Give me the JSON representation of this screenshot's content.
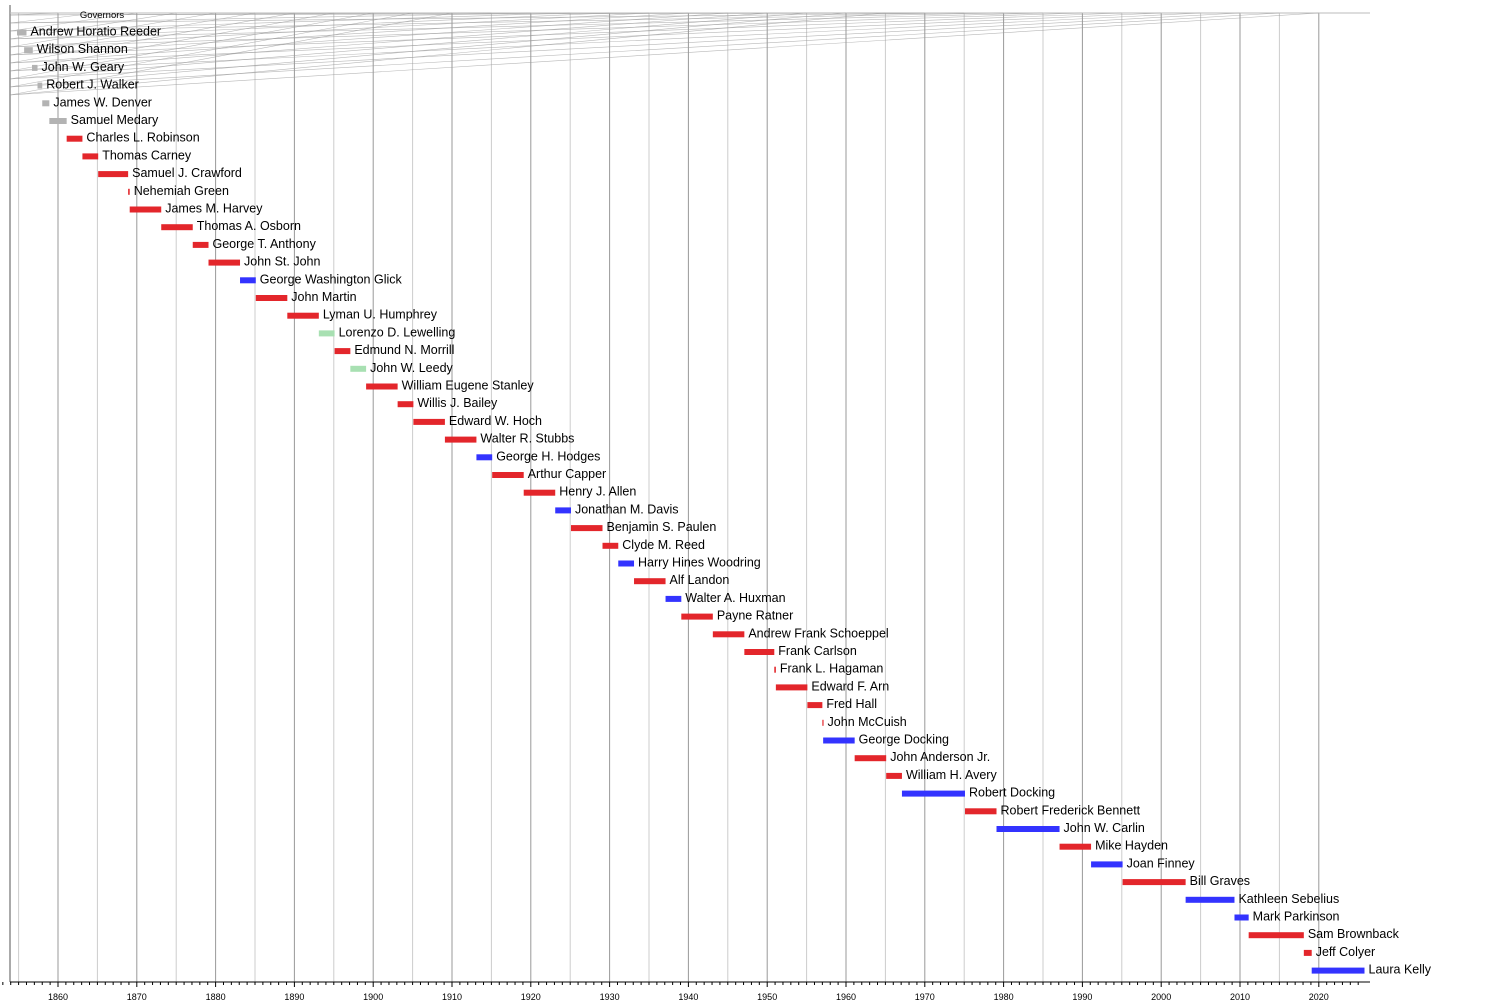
{
  "chart_data": {
    "type": "timeline",
    "title": "Governors",
    "x_range": [
      1853,
      2026
    ],
    "x_ticks": [
      "1860",
      "1870",
      "1880",
      "1890",
      "1900",
      "1910",
      "1920",
      "1930",
      "1940",
      "1950",
      "1960",
      "1970",
      "1980",
      "1990",
      "2000",
      "2010",
      "2020"
    ],
    "party_colors": {
      "Democratic": "#3333ff",
      "Republican": "#e3262b",
      "Populist": "#a8e0b2",
      "Territorial": "#b3b3b3"
    },
    "governors": [
      {
        "name": "Andrew Horatio Reeder",
        "start": 1854.8,
        "end": 1856.0,
        "party": "Territorial"
      },
      {
        "name": "Wilson Shannon",
        "start": 1855.7,
        "end": 1856.8,
        "party": "Territorial"
      },
      {
        "name": "John W. Geary",
        "start": 1856.7,
        "end": 1857.4,
        "party": "Territorial"
      },
      {
        "name": "Robert J. Walker",
        "start": 1857.4,
        "end": 1858.0,
        "party": "Territorial"
      },
      {
        "name": "James W. Denver",
        "start": 1858.0,
        "end": 1858.9,
        "party": "Territorial"
      },
      {
        "name": "Samuel Medary",
        "start": 1858.9,
        "end": 1861.1,
        "party": "Territorial"
      },
      {
        "name": "Charles L. Robinson",
        "start": 1861.1,
        "end": 1863.1,
        "party": "Republican"
      },
      {
        "name": "Thomas Carney",
        "start": 1863.1,
        "end": 1865.1,
        "party": "Republican"
      },
      {
        "name": "Samuel J. Crawford",
        "start": 1865.1,
        "end": 1868.9,
        "party": "Republican"
      },
      {
        "name": "Nehemiah Green",
        "start": 1868.9,
        "end": 1869.1,
        "party": "Republican"
      },
      {
        "name": "James M. Harvey",
        "start": 1869.1,
        "end": 1873.1,
        "party": "Republican"
      },
      {
        "name": "Thomas A. Osborn",
        "start": 1873.1,
        "end": 1877.1,
        "party": "Republican"
      },
      {
        "name": "George T. Anthony",
        "start": 1877.1,
        "end": 1879.1,
        "party": "Republican"
      },
      {
        "name": "John St. John",
        "start": 1879.1,
        "end": 1883.1,
        "party": "Republican"
      },
      {
        "name": "George Washington Glick",
        "start": 1883.1,
        "end": 1885.1,
        "party": "Democratic"
      },
      {
        "name": "John Martin",
        "start": 1885.1,
        "end": 1889.1,
        "party": "Republican"
      },
      {
        "name": "Lyman U. Humphrey",
        "start": 1889.1,
        "end": 1893.1,
        "party": "Republican"
      },
      {
        "name": "Lorenzo D. Lewelling",
        "start": 1893.1,
        "end": 1895.1,
        "party": "Populist"
      },
      {
        "name": "Edmund N. Morrill",
        "start": 1895.1,
        "end": 1897.1,
        "party": "Republican"
      },
      {
        "name": "John W. Leedy",
        "start": 1897.1,
        "end": 1899.1,
        "party": "Populist"
      },
      {
        "name": "William Eugene Stanley",
        "start": 1899.1,
        "end": 1903.1,
        "party": "Republican"
      },
      {
        "name": "Willis J. Bailey",
        "start": 1903.1,
        "end": 1905.1,
        "party": "Republican"
      },
      {
        "name": "Edward W. Hoch",
        "start": 1905.1,
        "end": 1909.1,
        "party": "Republican"
      },
      {
        "name": "Walter R. Stubbs",
        "start": 1909.1,
        "end": 1913.1,
        "party": "Republican"
      },
      {
        "name": "George H. Hodges",
        "start": 1913.1,
        "end": 1915.1,
        "party": "Democratic"
      },
      {
        "name": "Arthur Capper",
        "start": 1915.1,
        "end": 1919.1,
        "party": "Republican"
      },
      {
        "name": "Henry J. Allen",
        "start": 1919.1,
        "end": 1923.1,
        "party": "Republican"
      },
      {
        "name": "Jonathan M. Davis",
        "start": 1923.1,
        "end": 1925.1,
        "party": "Democratic"
      },
      {
        "name": "Benjamin S. Paulen",
        "start": 1925.1,
        "end": 1929.1,
        "party": "Republican"
      },
      {
        "name": "Clyde M. Reed",
        "start": 1929.1,
        "end": 1931.1,
        "party": "Republican"
      },
      {
        "name": "Harry Hines Woodring",
        "start": 1931.1,
        "end": 1933.1,
        "party": "Democratic"
      },
      {
        "name": "Alf Landon",
        "start": 1933.1,
        "end": 1937.1,
        "party": "Republican"
      },
      {
        "name": "Walter A. Huxman",
        "start": 1937.1,
        "end": 1939.1,
        "party": "Democratic"
      },
      {
        "name": "Payne Ratner",
        "start": 1939.1,
        "end": 1943.1,
        "party": "Republican"
      },
      {
        "name": "Andrew Frank Schoeppel",
        "start": 1943.1,
        "end": 1947.1,
        "party": "Republican"
      },
      {
        "name": "Frank Carlson",
        "start": 1947.1,
        "end": 1950.9,
        "party": "Republican"
      },
      {
        "name": "Frank L. Hagaman",
        "start": 1950.9,
        "end": 1951.1,
        "party": "Republican"
      },
      {
        "name": "Edward F. Arn",
        "start": 1951.1,
        "end": 1955.1,
        "party": "Republican"
      },
      {
        "name": "Fred Hall",
        "start": 1955.1,
        "end": 1957.0,
        "party": "Republican"
      },
      {
        "name": "John McCuish",
        "start": 1957.0,
        "end": 1957.1,
        "party": "Republican"
      },
      {
        "name": "George Docking",
        "start": 1957.1,
        "end": 1961.1,
        "party": "Democratic"
      },
      {
        "name": "John Anderson Jr.",
        "start": 1961.1,
        "end": 1965.1,
        "party": "Republican"
      },
      {
        "name": "William H. Avery",
        "start": 1965.1,
        "end": 1967.1,
        "party": "Republican"
      },
      {
        "name": "Robert Docking",
        "start": 1967.1,
        "end": 1975.1,
        "party": "Democratic"
      },
      {
        "name": "Robert Frederick Bennett",
        "start": 1975.1,
        "end": 1979.1,
        "party": "Republican"
      },
      {
        "name": "John W. Carlin",
        "start": 1979.1,
        "end": 1987.1,
        "party": "Democratic"
      },
      {
        "name": "Mike Hayden",
        "start": 1987.1,
        "end": 1991.1,
        "party": "Republican"
      },
      {
        "name": "Joan Finney",
        "start": 1991.1,
        "end": 1995.1,
        "party": "Democratic"
      },
      {
        "name": "Bill Graves",
        "start": 1995.1,
        "end": 2003.1,
        "party": "Republican"
      },
      {
        "name": "Kathleen Sebelius",
        "start": 2003.1,
        "end": 2009.3,
        "party": "Democratic"
      },
      {
        "name": "Mark Parkinson",
        "start": 2009.3,
        "end": 2011.1,
        "party": "Democratic"
      },
      {
        "name": "Sam Brownback",
        "start": 2011.1,
        "end": 2018.1,
        "party": "Republican"
      },
      {
        "name": "Jeff Colyer",
        "start": 2018.1,
        "end": 2019.1,
        "party": "Republican"
      },
      {
        "name": "Laura Kelly",
        "start": 2019.1,
        "end": 2025.8,
        "party": "Democratic"
      }
    ]
  }
}
